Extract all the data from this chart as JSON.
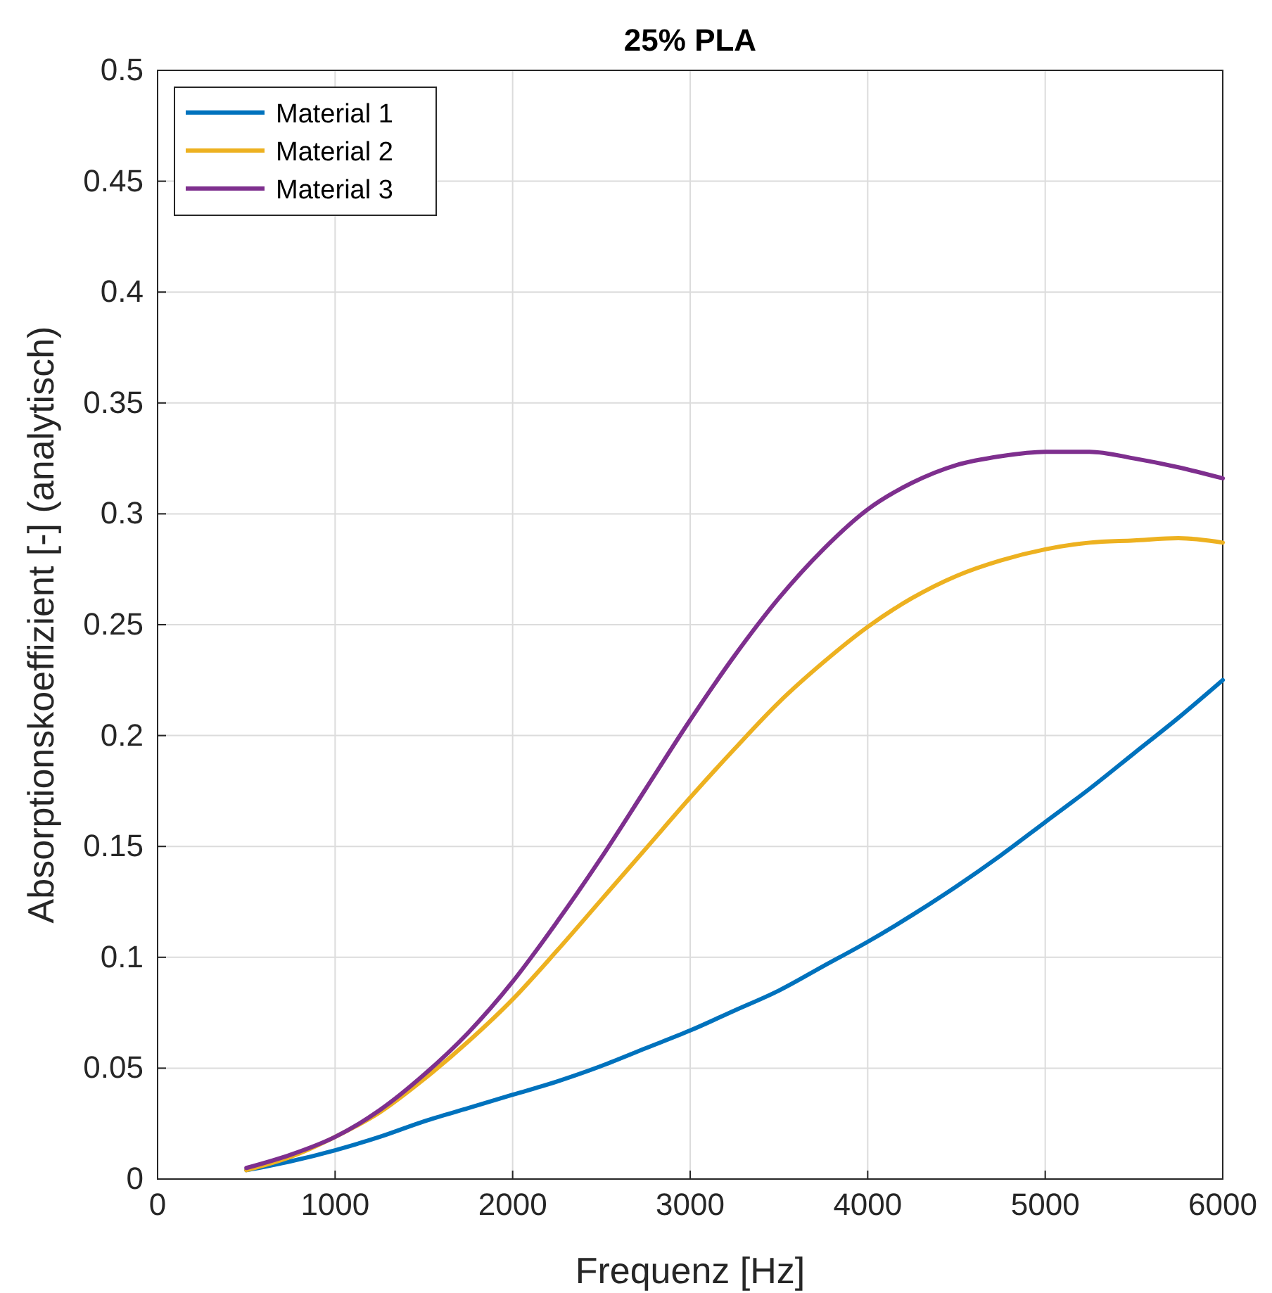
{
  "chart_data": {
    "type": "line",
    "title": "25% PLA",
    "xlabel": "Frequenz [Hz]",
    "ylabel": "Absorptionskoeffizient [-] (analytisch)",
    "x": [
      500,
      750,
      1000,
      1250,
      1500,
      1750,
      2000,
      2250,
      2500,
      2750,
      3000,
      3250,
      3500,
      3750,
      4000,
      4250,
      4500,
      4750,
      5000,
      5250,
      5500,
      5750,
      6000
    ],
    "series": [
      {
        "name": "Material 1",
        "color": "#0072bd",
        "values": [
          0.004,
          0.008,
          0.013,
          0.019,
          0.026,
          0.032,
          0.038,
          0.044,
          0.051,
          0.059,
          0.067,
          0.076,
          0.085,
          0.096,
          0.107,
          0.119,
          0.132,
          0.146,
          0.161,
          0.176,
          0.192,
          0.208,
          0.225
        ]
      },
      {
        "name": "Material 2",
        "color": "#edb120",
        "values": [
          0.004,
          0.01,
          0.019,
          0.03,
          0.045,
          0.062,
          0.081,
          0.103,
          0.126,
          0.149,
          0.172,
          0.194,
          0.215,
          0.233,
          0.249,
          0.262,
          0.272,
          0.279,
          0.284,
          0.287,
          0.288,
          0.289,
          0.287
        ]
      },
      {
        "name": "Material 3",
        "color": "#7e2f8e",
        "values": [
          0.005,
          0.011,
          0.019,
          0.031,
          0.047,
          0.066,
          0.089,
          0.116,
          0.145,
          0.176,
          0.207,
          0.236,
          0.262,
          0.284,
          0.302,
          0.314,
          0.322,
          0.326,
          0.328,
          0.328,
          0.325,
          0.321,
          0.316
        ]
      }
    ],
    "xlim": [
      0,
      6000
    ],
    "ylim": [
      0,
      0.5
    ],
    "xticks": [
      0,
      1000,
      2000,
      3000,
      4000,
      5000,
      6000
    ],
    "yticks": [
      0,
      0.05,
      0.1,
      0.15,
      0.2,
      0.25,
      0.3,
      0.35,
      0.4,
      0.45,
      0.5
    ],
    "grid": true,
    "legend": "top left",
    "marker": "none",
    "line_style": "solid"
  }
}
